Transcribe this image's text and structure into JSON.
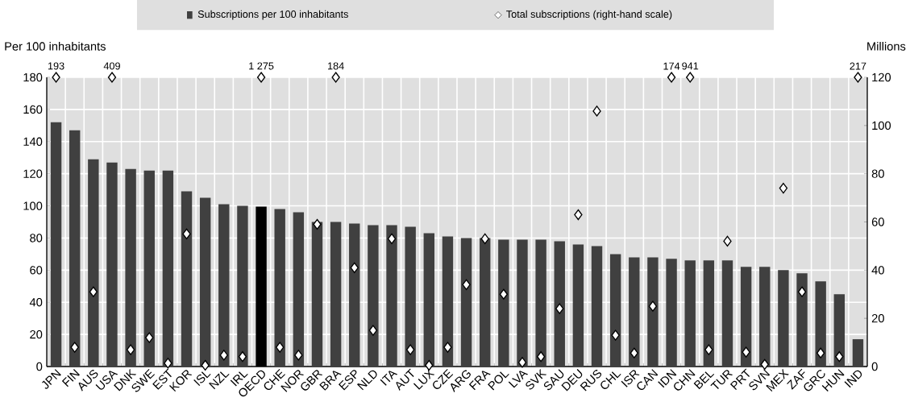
{
  "chart_data": {
    "type": "bar",
    "categories": [
      "JPN",
      "FIN",
      "AUS",
      "USA",
      "DNK",
      "SWE",
      "EST",
      "KOR",
      "ISL",
      "NZL",
      "IRL",
      "OECD",
      "CHE",
      "NOR",
      "GBR",
      "BRA",
      "ESP",
      "NLD",
      "ITA",
      "AUT",
      "LUX",
      "CZE",
      "ARG",
      "FRA",
      "POL",
      "LVA",
      "SVK",
      "SAU",
      "DEU",
      "RUS",
      "CHL",
      "ISR",
      "CAN",
      "IDN",
      "CHN",
      "BEL",
      "TUR",
      "PRT",
      "SVN",
      "MEX",
      "ZAF",
      "GRC",
      "HUN",
      "IND"
    ],
    "series": [
      {
        "name": "Subscriptions per 100 inhabitants",
        "color": "#404040",
        "colors": [
          "#404040",
          "#404040",
          "#404040",
          "#404040",
          "#404040",
          "#404040",
          "#404040",
          "#404040",
          "#404040",
          "#404040",
          "#404040",
          "#000000",
          "#404040",
          "#404040",
          "#404040",
          "#404040",
          "#404040",
          "#404040",
          "#404040",
          "#404040",
          "#404040",
          "#404040",
          "#404040",
          "#404040",
          "#404040",
          "#404040",
          "#404040",
          "#404040",
          "#404040",
          "#404040",
          "#404040",
          "#404040",
          "#404040",
          "#404040",
          "#404040",
          "#404040",
          "#404040",
          "#404040",
          "#404040",
          "#404040",
          "#404040",
          "#404040",
          "#404040",
          "#404040"
        ],
        "values": [
          152,
          147,
          129,
          127,
          123,
          122,
          122,
          109,
          105,
          101,
          100,
          99.5,
          98,
          96,
          90,
          90,
          89,
          88,
          88,
          87,
          83,
          81,
          80,
          80,
          79,
          79,
          79,
          78,
          76,
          75,
          70,
          68,
          68,
          67,
          66,
          66,
          66,
          62,
          62,
          60,
          58,
          53,
          45,
          17
        ]
      },
      {
        "name": "Total subscriptions (right-hand scale)",
        "type": "scatter",
        "axis": "y2",
        "color": "#ffffff",
        "marker": "diamond",
        "values": [
          null,
          8,
          31,
          null,
          7,
          12,
          1.4,
          55,
          0.5,
          4.7,
          4.1,
          null,
          8,
          4.7,
          59,
          null,
          41,
          15,
          53,
          7,
          0.5,
          8,
          34,
          53,
          30,
          1.7,
          4.1,
          24,
          63,
          106,
          13,
          5.6,
          25,
          null,
          null,
          7,
          52,
          6,
          0.9,
          74,
          31,
          5.6,
          4.1,
          null
        ]
      },
      {
        "type": "scatter",
        "axis": "y2",
        "color": "#ffffff",
        "marker": "diamond",
        "values": [
          120,
          null,
          null,
          120,
          null,
          null,
          null,
          null,
          null,
          null,
          null,
          120,
          null,
          null,
          null,
          120,
          null,
          null,
          null,
          null,
          null,
          null,
          null,
          null,
          null,
          null,
          null,
          null,
          null,
          null,
          null,
          null,
          null,
          120,
          120,
          null,
          null,
          null,
          null,
          null,
          null,
          null,
          null,
          120
        ]
      }
    ],
    "ylabel": "Per 100 inhabitants",
    "y2label": "Millions",
    "ylim": [
      0,
      180
    ],
    "yticks": [
      0,
      20,
      40,
      60,
      80,
      100,
      120,
      140,
      160,
      180
    ],
    "y2lim": [
      0,
      120
    ],
    "y2ticks": [
      0,
      20,
      40,
      60,
      80,
      100,
      120
    ],
    "annotations": [
      "193",
      "409",
      "1 275",
      "184",
      "174",
      "941",
      "217"
    ],
    "grid": true,
    "legend": "top"
  }
}
